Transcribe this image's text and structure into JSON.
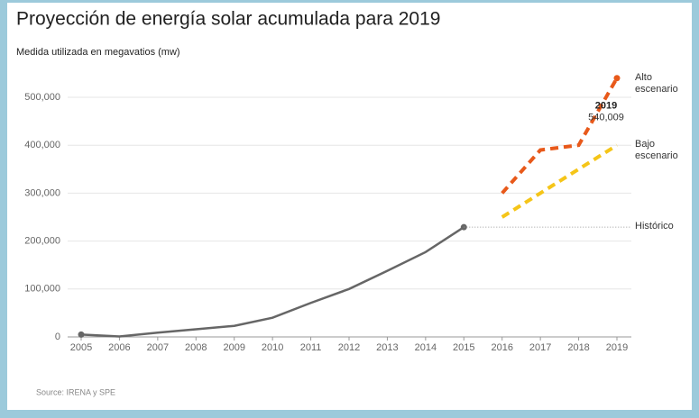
{
  "chart_data": {
    "type": "line",
    "title": "Proyección de energía solar acumulada para 2019",
    "subtitle": "Medida utilizada en megavatios (mw)",
    "source": "Source: IRENA y SPE",
    "categories": [
      "2005",
      "2006",
      "2007",
      "2008",
      "2009",
      "2010",
      "2011",
      "2012",
      "2013",
      "2014",
      "2015",
      "2016",
      "2017",
      "2018",
      "2019"
    ],
    "series": [
      {
        "name": "Histórico",
        "color": "#666666",
        "dash": "solid",
        "values": [
          5000,
          1000,
          9000,
          16000,
          23000,
          40000,
          71000,
          100000,
          138000,
          177000,
          229000,
          null,
          null,
          null,
          null
        ]
      },
      {
        "name": "Alto escenario",
        "color": "#e8591a",
        "dash": "dashed",
        "values": [
          null,
          null,
          null,
          null,
          null,
          null,
          null,
          null,
          null,
          null,
          null,
          300000,
          390000,
          400000,
          540009
        ],
        "value_labels": [
          null,
          null,
          null,
          null,
          null,
          null,
          null,
          null,
          null,
          null,
          null,
          null,
          null,
          null,
          "540,009"
        ]
      },
      {
        "name": "Bajo escenario",
        "color": "#f5c518",
        "dash": "dashed",
        "values": [
          null,
          null,
          null,
          null,
          null,
          null,
          null,
          null,
          null,
          null,
          null,
          250000,
          300000,
          350000,
          400000
        ]
      }
    ],
    "annotations": [
      {
        "text": "2019"
      }
    ],
    "ylim": [
      0,
      500000
    ],
    "yticks": [
      0,
      {
        "value": 100000,
        "label": "100,000"
      },
      {
        "value": 200000,
        "label": "200,000"
      },
      {
        "value": 300000,
        "label": "300,000"
      },
      {
        "value": 400000,
        "label": "400,000"
      },
      {
        "value": 500000,
        "label": "500,000"
      }
    ],
    "grid": true
  }
}
